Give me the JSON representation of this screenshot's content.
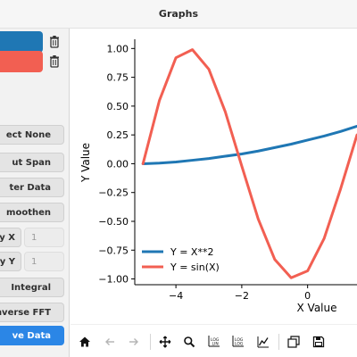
{
  "window": {
    "title": "Graphs"
  },
  "sidebar": {
    "curves": [
      {
        "color": "#1f77b4"
      },
      {
        "color": "#f25f52"
      }
    ],
    "buttons": {
      "select_none": "ect None",
      "cut_span": "ut Span",
      "filter_data": "ter Data",
      "smoothen": "moothen",
      "integral": "Integral",
      "inverse_fft": "nverse FFT",
      "save_data": "ve Data"
    },
    "shift_x": {
      "label": "y X",
      "value": "1"
    },
    "shift_y": {
      "label": "y Y",
      "value": "1"
    }
  },
  "colors": {
    "accent": "#2b86e6",
    "series_1": "#1f77b4",
    "series_2": "#f25f52"
  },
  "toolbar": {
    "icons": [
      "home-icon",
      "back-icon",
      "forward-icon",
      "pan-icon",
      "zoom-icon",
      "log-x-icon",
      "log-y-icon",
      "graph-style-icon",
      "subplot-icon",
      "save-icon"
    ]
  },
  "chart_data": {
    "type": "line",
    "xlabel": "X Value",
    "ylabel": "Y Value",
    "xlim": [
      -5.25,
      1.5
    ],
    "ylim": [
      -1.05,
      1.08
    ],
    "xticks": [
      -4,
      -2,
      0
    ],
    "xtick_labels": [
      "−4",
      "−2",
      "0"
    ],
    "yticks": [
      1.0,
      0.75,
      0.5,
      0.25,
      0.0,
      -0.25,
      -0.5,
      -0.75,
      -1.0
    ],
    "ytick_labels": [
      "1.00",
      "0.75",
      "0.50",
      "0.25",
      "0.00",
      "−0.25",
      "−0.50",
      "−0.75",
      "−1.00"
    ],
    "legend_position": "lower-left",
    "grid": false,
    "series": [
      {
        "name": "Y = X**2",
        "color": "#1f77b4",
        "x": [
          -5.0,
          -4.5,
          -4.0,
          -3.5,
          -3.0,
          -2.5,
          -2.0,
          -1.5,
          -1.0,
          -0.5,
          0.0,
          0.5,
          1.0,
          1.5
        ],
        "y": [
          0.0,
          0.005,
          0.015,
          0.03,
          0.045,
          0.065,
          0.085,
          0.11,
          0.14,
          0.17,
          0.205,
          0.24,
          0.28,
          0.325
        ]
      },
      {
        "name": "Y = sin(X)",
        "color": "#f25f52",
        "x": [
          -5.0,
          -4.5,
          -4.0,
          -3.5,
          -3.0,
          -2.5,
          -2.0,
          -1.5,
          -1.0,
          -0.5,
          0.0,
          0.5,
          1.0,
          1.5
        ],
        "y": [
          0.0,
          0.55,
          0.92,
          0.99,
          0.82,
          0.45,
          -0.02,
          -0.48,
          -0.83,
          -0.99,
          -0.93,
          -0.65,
          -0.22,
          0.25
        ]
      }
    ]
  }
}
